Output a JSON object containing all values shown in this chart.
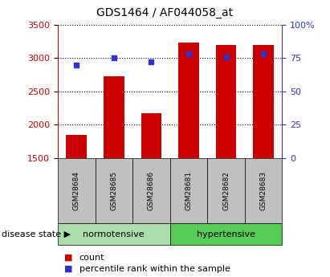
{
  "title": "GDS1464 / AF044058_at",
  "samples": [
    "GSM28684",
    "GSM28685",
    "GSM28686",
    "GSM28681",
    "GSM28682",
    "GSM28683"
  ],
  "bar_values": [
    1850,
    2730,
    2170,
    3230,
    3200,
    3200
  ],
  "percentile_values": [
    70,
    75,
    72,
    78,
    76,
    78
  ],
  "ylim_left": [
    1500,
    3500
  ],
  "ylim_right": [
    0,
    100
  ],
  "yticks_left": [
    1500,
    2000,
    2500,
    3000,
    3500
  ],
  "yticks_right": [
    0,
    25,
    50,
    75,
    100
  ],
  "ytick_right_labels": [
    "0",
    "25",
    "50",
    "75",
    "100%"
  ],
  "bar_color": "#cc0000",
  "percentile_color": "#3333cc",
  "grid_color": "#000000",
  "normotensive_label": "normotensive",
  "hypertensive_label": "hypertensive",
  "sample_bg_color": "#c0c0c0",
  "normotensive_bg_color": "#aaddaa",
  "hypertensive_bg_color": "#55cc55",
  "disease_state_label": "disease state",
  "legend_count_label": "count",
  "legend_percentile_label": "percentile rank within the sample",
  "title_fontsize": 10,
  "tick_fontsize": 8,
  "label_fontsize": 8
}
